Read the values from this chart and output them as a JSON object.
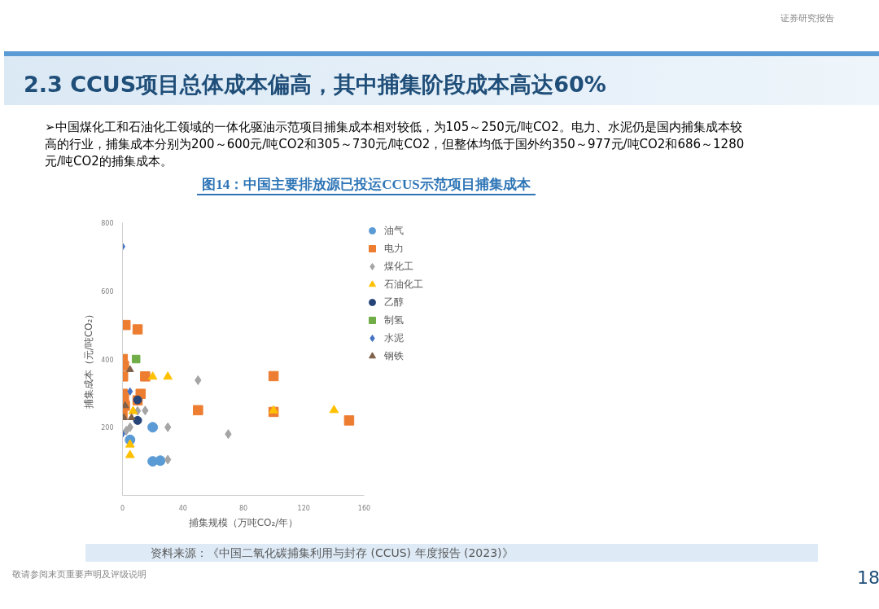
{
  "chart_data": {
    "type": "scatter",
    "title": "2.3 CCUS项目总体成本偏高，其中捕集阶段成本高达60%",
    "subtitle": "图14：中国主要排放源已投运CCUS示范项目捕集成本",
    "xlabel": "捕集规模（万吨CO₂/年）",
    "ylabel": "捕集成本（元/吨CO₂）",
    "xlim": [
      0,
      160
    ],
    "xticks": [
      0,
      40,
      80,
      120,
      160
    ],
    "ylim": [
      0,
      800
    ],
    "yticks": [
      200,
      400,
      600,
      800
    ],
    "grid": false,
    "legend": "right",
    "series": [
      {
        "name": "油气",
        "color": "#5b9bd5",
        "marker": "circle",
        "x": [
          5,
          20,
          20,
          25
        ],
        "values": [
          163,
          200,
          100,
          102
        ]
      },
      {
        "name": "电力",
        "color": "#ed7d31",
        "marker": "square",
        "x": [
          2,
          10,
          0.2,
          1,
          0.4,
          15,
          0.2,
          1,
          12,
          1.6,
          10,
          0,
          50,
          100,
          100,
          150
        ],
        "values": [
          500,
          487,
          400,
          380,
          349,
          349,
          298,
          287,
          298,
          263,
          279,
          240,
          250,
          350,
          245,
          220
        ]
      },
      {
        "name": "煤化工",
        "color": "#a5a5a5",
        "marker": "diamond",
        "x": [
          50,
          10,
          15,
          5,
          2.5,
          30,
          30,
          70
        ],
        "values": [
          338,
          248,
          249,
          200,
          190,
          200,
          105,
          180
        ]
      },
      {
        "name": "石油化工",
        "color": "#ffc000",
        "marker": "triangle",
        "x": [
          20,
          30,
          7,
          5,
          5,
          100,
          140
        ],
        "values": [
          348,
          348,
          247,
          149,
          118,
          249,
          250
        ]
      },
      {
        "name": "乙醇",
        "color": "#264478",
        "marker": "circle",
        "x": [
          10,
          10
        ],
        "values": [
          220,
          280
        ]
      },
      {
        "name": "制氢",
        "color": "#70ad47",
        "marker": "square",
        "x": [
          9
        ],
        "values": [
          400
        ]
      },
      {
        "name": "水泥",
        "color": "#4472c4",
        "marker": "diamond",
        "x": [
          0,
          5,
          0
        ],
        "values": [
          730,
          305,
          180
        ]
      },
      {
        "name": "钢铁",
        "color": "#7f6048",
        "marker": "triangle",
        "x": [
          5,
          1,
          6,
          1.8
        ],
        "values": [
          369,
          228,
          228,
          263
        ]
      }
    ],
    "annotations": [
      "➢中国煤化工和石油化工领域的一体化驱油示范项目捕集成本相对较低，为105～250元/吨CO2。电力、水泥仍是国内捕集成本较高的行业，捕集成本分别为200～600元/吨CO2和305～730元/吨CO2，但整体均低于国外约350～977元/吨CO2和686～1280元/吨CO2的捕集成本。",
      "资料来源：《中国二氧化碳捕集利用与封存 (CCUS) 年度报告 (2023)》",
      "证券研究报告",
      "敬请参阅末页重要声明及评级说明",
      "18"
    ]
  }
}
